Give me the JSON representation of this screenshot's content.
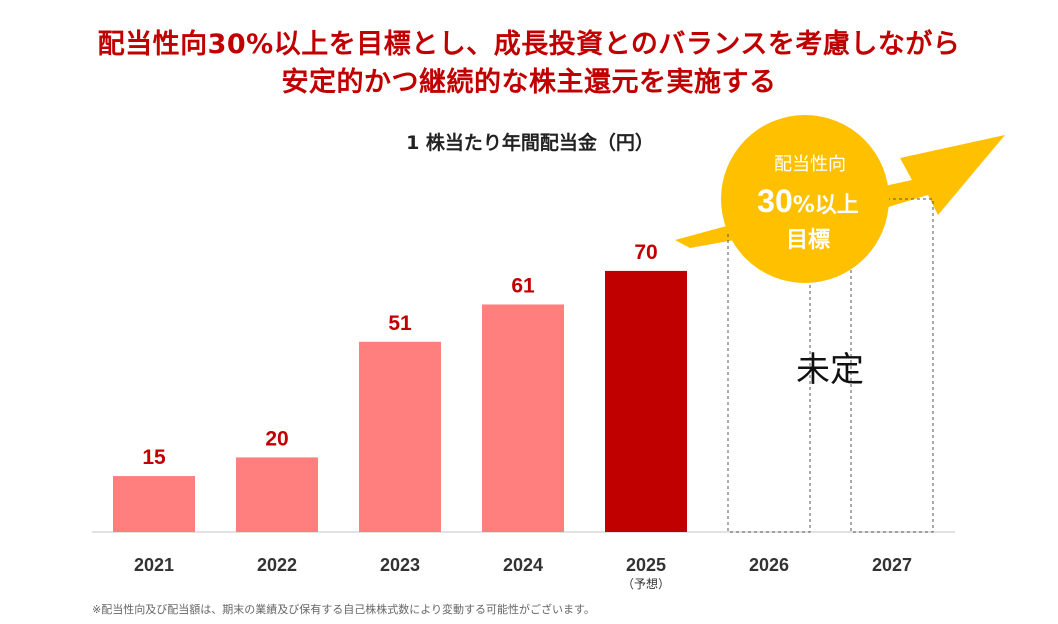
{
  "headline": {
    "line1": "配当性向30%以上を目標とし、成長投資とのバランスを考慮しながら",
    "line2": "安定的かつ継続的な株主還元を実施する"
  },
  "chart_data": {
    "type": "bar",
    "title": "1 株当たり年間配当金（円）",
    "categories": [
      "2021",
      "2022",
      "2023",
      "2024",
      "2025",
      "2026",
      "2027"
    ],
    "category_sublabels": [
      "",
      "",
      "",
      "",
      "（予想）",
      "",
      ""
    ],
    "values": [
      15,
      20,
      51,
      61,
      70,
      null,
      null
    ],
    "data_labels": [
      "15",
      "20",
      "51",
      "61",
      "70",
      "",
      ""
    ],
    "placeholder_label": "未定",
    "colors": {
      "actual": "#ff7f7f",
      "forecast": "#c00000",
      "label": "#c00000",
      "badge": "#ffc000",
      "placeholder_border": "#555555"
    },
    "badge": {
      "line1": "配当性向",
      "line2_number": "30",
      "line2_unit": "%以上",
      "line3": "目標"
    },
    "ylim": [
      0,
      100
    ],
    "grid": false
  },
  "footnote": "※配当性向及び配当額は、期末の業績及び保有する自己株株式数により変動する可能性がございます。"
}
